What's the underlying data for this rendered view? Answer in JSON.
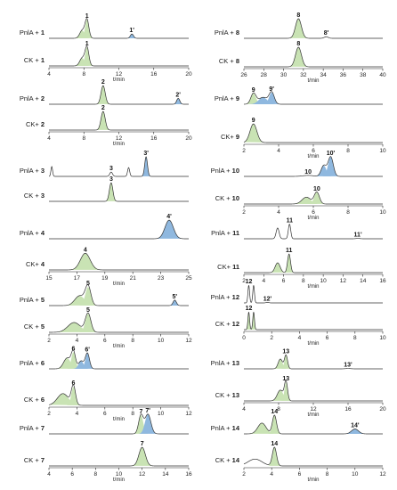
{
  "chart_data": {
    "type": "line",
    "xlabel": "t/min",
    "ylabel": "",
    "colors": {
      "substrate_fill": "#c9e3b4",
      "product_fill": "#8fb8df",
      "trace": "#333333"
    },
    "panels": [
      {
        "id": 1,
        "compound": "1",
        "xlim": [
          4,
          20
        ],
        "ticks": [
          4,
          8,
          12,
          16,
          20
        ],
        "top": {
          "label_prefix": "PnlA + ",
          "label_bold": "1",
          "peaks": [
            {
              "x": 7.8,
              "h": 0.4,
              "w": 0.28,
              "fill": "s"
            },
            {
              "x": 8.35,
              "h": 0.95,
              "w": 0.22,
              "fill": "s",
              "label": "1"
            },
            {
              "x": 13.5,
              "h": 0.22,
              "w": 0.18,
              "fill": "p",
              "label": "1'"
            }
          ]
        },
        "bottom": {
          "label_prefix": "CK + ",
          "label_bold": "1",
          "peaks": [
            {
              "x": 7.8,
              "h": 0.4,
              "w": 0.28,
              "fill": "s"
            },
            {
              "x": 8.35,
              "h": 0.95,
              "w": 0.22,
              "fill": "s",
              "label": "1"
            }
          ]
        }
      },
      {
        "id": 2,
        "compound": "2",
        "xlim": [
          4,
          20
        ],
        "ticks": [
          4,
          8,
          12,
          16,
          20
        ],
        "top": {
          "label_prefix": "PnlA + ",
          "label_bold": "2",
          "peaks": [
            {
              "x": 10.2,
              "h": 0.95,
              "w": 0.24,
              "fill": "s",
              "label": "2"
            },
            {
              "x": 18.8,
              "h": 0.3,
              "w": 0.18,
              "fill": "p",
              "label": "2'"
            }
          ]
        },
        "bottom": {
          "label_prefix": "CK+ ",
          "label_bold": "2",
          "peaks": [
            {
              "x": 10.2,
              "h": 0.95,
              "w": 0.24,
              "fill": "s",
              "label": "2"
            }
          ]
        }
      },
      {
        "id": 3,
        "compound": "3",
        "xlim": [
          4,
          24
        ],
        "ticks": [],
        "top": {
          "label_prefix": "PnlA + ",
          "label_bold": "3",
          "peaks": [
            {
              "x": 4.4,
              "h": 0.5,
              "w": 0.12,
              "fill": "n"
            },
            {
              "x": 12.9,
              "h": 0.22,
              "w": 0.2,
              "fill": "n",
              "label": "3"
            },
            {
              "x": 15.4,
              "h": 0.45,
              "w": 0.15,
              "fill": "n"
            },
            {
              "x": 17.9,
              "h": 1.0,
              "w": 0.2,
              "fill": "p",
              "label": "3'"
            }
          ]
        },
        "bottom": {
          "label_prefix": "CK + ",
          "label_bold": "3",
          "peaks": [
            {
              "x": 12.9,
              "h": 0.95,
              "w": 0.25,
              "fill": "s",
              "label": "3"
            }
          ]
        }
      },
      {
        "id": 4,
        "compound": "4",
        "xlim": [
          15,
          25
        ],
        "ticks": [
          15,
          17,
          19,
          21,
          23,
          25
        ],
        "top": {
          "label_prefix": "PnlA + ",
          "label_bold": "4",
          "peaks": [
            {
              "x": 23.6,
              "h": 0.95,
              "w": 0.3,
              "fill": "p",
              "label": "4'"
            }
          ]
        },
        "bottom": {
          "label_prefix": "CK+ ",
          "label_bold": "4",
          "peaks": [
            {
              "x": 17.6,
              "h": 0.85,
              "w": 0.35,
              "fill": "s",
              "label": "4"
            }
          ]
        }
      },
      {
        "id": 5,
        "compound": "5",
        "xlim": [
          2,
          12
        ],
        "ticks": [
          2,
          4,
          6,
          8,
          10,
          12
        ],
        "top": {
          "label_prefix": "PnlA + ",
          "label_bold": "5",
          "peaks": [
            {
              "x": 4.2,
              "h": 0.5,
              "w": 0.35,
              "fill": "s"
            },
            {
              "x": 4.8,
              "h": 0.95,
              "w": 0.2,
              "fill": "s",
              "label": "5"
            },
            {
              "x": 11.0,
              "h": 0.28,
              "w": 0.12,
              "fill": "p",
              "label": "5'"
            }
          ]
        },
        "bottom": {
          "label_prefix": "CK + ",
          "label_bold": "5",
          "peaks": [
            {
              "x": 3.8,
              "h": 0.5,
              "w": 0.45,
              "fill": "s"
            },
            {
              "x": 4.8,
              "h": 0.95,
              "w": 0.2,
              "fill": "s",
              "label": "5"
            }
          ]
        }
      },
      {
        "id": 6,
        "compound": "6",
        "xlim": [
          2,
          12
        ],
        "ticks": [
          2,
          4,
          6,
          8,
          10,
          12
        ],
        "top": {
          "label_prefix": "PnlA + ",
          "label_bold": "6",
          "peaks": [
            {
              "x": 3.3,
              "h": 0.55,
              "w": 0.25,
              "fill": "s"
            },
            {
              "x": 3.75,
              "h": 0.85,
              "w": 0.15,
              "fill": "s",
              "label": "6"
            },
            {
              "x": 4.3,
              "h": 0.4,
              "w": 0.18,
              "fill": "p"
            },
            {
              "x": 4.75,
              "h": 0.8,
              "w": 0.15,
              "fill": "p",
              "label": "6'"
            }
          ]
        },
        "bottom": {
          "label_prefix": "CK + ",
          "label_bold": "6",
          "peaks": [
            {
              "x": 3.0,
              "h": 0.6,
              "w": 0.4,
              "fill": "s"
            },
            {
              "x": 3.75,
              "h": 0.95,
              "w": 0.15,
              "fill": "s",
              "label": "6"
            }
          ]
        }
      },
      {
        "id": 7,
        "compound": "7",
        "xlim": [
          4,
          16
        ],
        "ticks": [
          4,
          6,
          8,
          10,
          12,
          14,
          16
        ],
        "top": {
          "label_prefix": "PnlA + ",
          "label_bold": "7",
          "peaks": [
            {
              "x": 11.9,
              "h": 0.95,
              "w": 0.2,
              "fill": "s",
              "label": "7"
            },
            {
              "x": 12.5,
              "h": 1.0,
              "w": 0.25,
              "fill": "p",
              "label": "7'"
            }
          ]
        },
        "bottom": {
          "label_prefix": "CK + ",
          "label_bold": "7",
          "peaks": [
            {
              "x": 12.0,
              "h": 0.95,
              "w": 0.28,
              "fill": "s",
              "label": "7"
            }
          ]
        }
      },
      {
        "id": 8,
        "compound": "8",
        "xlim": [
          26,
          40
        ],
        "ticks": [
          26,
          28,
          30,
          32,
          34,
          36,
          38,
          40
        ],
        "top": {
          "label_prefix": "PnlA + ",
          "label_bold": "8",
          "peaks": [
            {
              "x": 31.5,
              "h": 1.0,
              "w": 0.3,
              "fill": "s",
              "label": "8"
            },
            {
              "x": 34.3,
              "h": 0.08,
              "w": 0.2,
              "fill": "n",
              "label": "8'"
            }
          ]
        },
        "bottom": {
          "label_prefix": "CK + ",
          "label_bold": "8",
          "peaks": [
            {
              "x": 31.5,
              "h": 1.0,
              "w": 0.3,
              "fill": "s",
              "label": "8"
            }
          ]
        }
      },
      {
        "id": 9,
        "compound": "9",
        "xlim": [
          2,
          10
        ],
        "ticks": [
          2,
          4,
          6,
          8,
          10
        ],
        "top": {
          "label_prefix": "PnlA + ",
          "label_bold": "9",
          "peaks": [
            {
              "x": 2.55,
              "h": 0.55,
              "w": 0.15,
              "fill": "s",
              "label": "9"
            },
            {
              "x": 3.1,
              "h": 0.35,
              "w": 0.25,
              "fill": "p"
            },
            {
              "x": 3.6,
              "h": 0.6,
              "w": 0.15,
              "fill": "p",
              "label": "9'"
            }
          ]
        },
        "bottom": {
          "label_prefix": "CK+ ",
          "label_bold": "9",
          "peaks": [
            {
              "x": 2.55,
              "h": 0.95,
              "w": 0.2,
              "fill": "s",
              "label": "9"
            }
          ]
        }
      },
      {
        "id": 10,
        "compound": "10",
        "xlim": [
          2,
          10
        ],
        "ticks": [
          2,
          4,
          6,
          8,
          10
        ],
        "top": {
          "label_prefix": "PnlA + ",
          "label_bold": "10",
          "peaks": [
            {
              "x": 5.7,
              "h": 0.05,
              "w": 0.3,
              "fill": "n",
              "label": "10"
            },
            {
              "x": 6.6,
              "h": 0.55,
              "w": 0.15,
              "fill": "p"
            },
            {
              "x": 7.0,
              "h": 1.0,
              "w": 0.15,
              "fill": "p",
              "label": "10'"
            }
          ]
        },
        "bottom": {
          "label_prefix": "CK + ",
          "label_bold": "10",
          "peaks": [
            {
              "x": 5.6,
              "h": 0.35,
              "w": 0.25,
              "fill": "s"
            },
            {
              "x": 6.2,
              "h": 0.6,
              "w": 0.15,
              "fill": "s",
              "label": "10"
            }
          ]
        }
      },
      {
        "id": 11,
        "compound": "11",
        "xlim": [
          2,
          16
        ],
        "ticks": [
          2,
          4,
          6,
          8,
          10,
          12,
          14,
          16
        ],
        "top": {
          "label_prefix": "PnlA + ",
          "label_bold": "11",
          "peaks": [
            {
              "x": 5.4,
              "h": 0.55,
              "w": 0.15,
              "fill": "n"
            },
            {
              "x": 6.6,
              "h": 0.75,
              "w": 0.12,
              "fill": "n",
              "label": "11"
            },
            {
              "x": 13.5,
              "h": 0.02,
              "w": 0.2,
              "fill": "n",
              "label": "11'"
            }
          ]
        },
        "bottom": {
          "label_prefix": "CK+ ",
          "label_bold": "11",
          "peaks": [
            {
              "x": 5.4,
              "h": 0.5,
              "w": 0.25,
              "fill": "s"
            },
            {
              "x": 6.55,
              "h": 0.95,
              "w": 0.15,
              "fill": "s",
              "label": "11"
            }
          ]
        }
      },
      {
        "id": 12,
        "compound": "12",
        "xlim": [
          0,
          10
        ],
        "ticks": [
          0,
          2,
          4,
          6,
          8,
          10
        ],
        "top": {
          "label_prefix": "PnlA + ",
          "label_bold": "12",
          "peaks": [
            {
              "x": 0.35,
              "h": 0.9,
              "w": 0.06,
              "fill": "n",
              "label": "12"
            },
            {
              "x": 0.7,
              "h": 0.9,
              "w": 0.06,
              "fill": "n"
            },
            {
              "x": 1.7,
              "h": 0.03,
              "w": 0.1,
              "fill": "n",
              "label": "12'"
            }
          ]
        },
        "bottom": {
          "label_prefix": "CK + ",
          "label_bold": "12",
          "peaks": [
            {
              "x": 0.35,
              "h": 0.9,
              "w": 0.06,
              "fill": "s",
              "label": "12"
            },
            {
              "x": 0.7,
              "h": 0.9,
              "w": 0.06,
              "fill": "s"
            }
          ]
        }
      },
      {
        "id": 13,
        "compound": "13",
        "xlim": [
          4,
          20
        ],
        "ticks": [
          4,
          8,
          12,
          16,
          20
        ],
        "top": {
          "label_prefix": "PnlA + ",
          "label_bold": "13",
          "peaks": [
            {
              "x": 8.2,
              "h": 0.5,
              "w": 0.25,
              "fill": "s"
            },
            {
              "x": 8.85,
              "h": 0.7,
              "w": 0.18,
              "fill": "s",
              "label": "13"
            },
            {
              "x": 16.0,
              "h": 0.02,
              "w": 0.3,
              "fill": "n",
              "label": "13'"
            }
          ]
        },
        "bottom": {
          "label_prefix": "CK + ",
          "label_bold": "13",
          "peaks": [
            {
              "x": 8.2,
              "h": 0.55,
              "w": 0.35,
              "fill": "s"
            },
            {
              "x": 8.85,
              "h": 0.95,
              "w": 0.18,
              "fill": "s",
              "label": "13"
            }
          ]
        }
      },
      {
        "id": 14,
        "compound": "14",
        "xlim": [
          2,
          12
        ],
        "ticks": [
          2,
          4,
          6,
          8,
          10,
          12
        ],
        "top": {
          "label_prefix": "PnlA + ",
          "label_bold": "14",
          "peaks": [
            {
              "x": 3.3,
              "h": 0.55,
              "w": 0.3,
              "fill": "s"
            },
            {
              "x": 4.2,
              "h": 0.95,
              "w": 0.15,
              "fill": "s",
              "label": "14"
            },
            {
              "x": 10.0,
              "h": 0.25,
              "w": 0.25,
              "fill": "p",
              "label": "14'"
            }
          ]
        },
        "bottom": {
          "label_prefix": "CK + ",
          "label_bold": "14",
          "peaks": [
            {
              "x": 2.8,
              "h": 0.35,
              "w": 0.5,
              "fill": "n"
            },
            {
              "x": 4.2,
              "h": 0.95,
              "w": 0.15,
              "fill": "s",
              "label": "14"
            }
          ]
        }
      }
    ]
  }
}
